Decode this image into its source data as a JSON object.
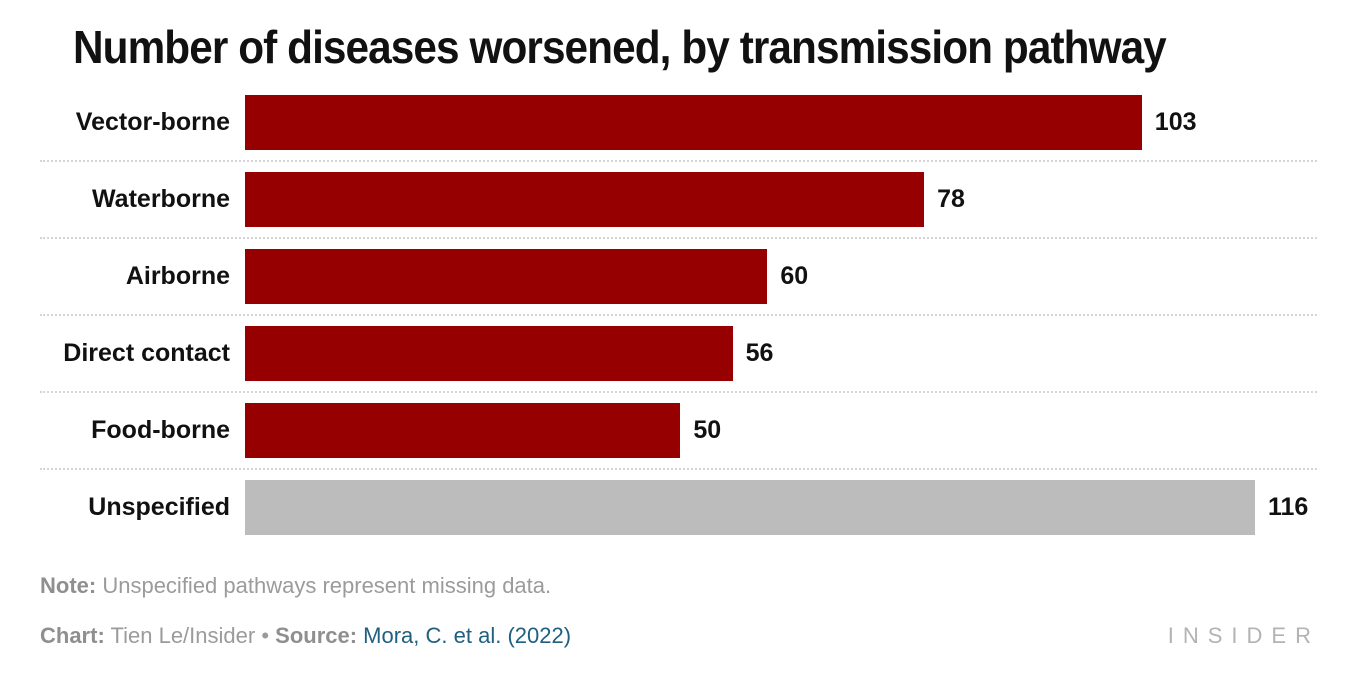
{
  "title": "Number of diseases worsened, by transmission pathway",
  "chart_data": {
    "type": "bar",
    "orientation": "horizontal",
    "title": "Number of diseases worsened, by transmission pathway",
    "categories": [
      "Vector-borne",
      "Waterborne",
      "Airborne",
      "Direct contact",
      "Food-borne",
      "Unspecified"
    ],
    "values": [
      103,
      78,
      60,
      56,
      50,
      116
    ],
    "colors": [
      "#970000",
      "#970000",
      "#970000",
      "#970000",
      "#970000",
      "#bcbcbc"
    ],
    "xlim": [
      0,
      116
    ],
    "grid": "dotted horizontal separators between rows",
    "legend": "none",
    "value_labels_shown": true
  },
  "footer": {
    "note_label": "Note:",
    "note_text": " Unspecified pathways represent missing data.",
    "chart_label": "Chart:",
    "chart_credit": " Tien Le/Insider ",
    "bullet": "•",
    "source_label": " Source: ",
    "source_text": "Mora, C. et al. (2022)",
    "logo": "INSIDER"
  },
  "colors": {
    "bar_red": "#970000",
    "bar_gray": "#bcbcbc",
    "separator_gray": "#d5d5d5",
    "text_black": "#111111",
    "note_gray": "#9b9b9b",
    "link_blue": "#1f5f7f",
    "logo_gray": "#b3b3b3"
  }
}
